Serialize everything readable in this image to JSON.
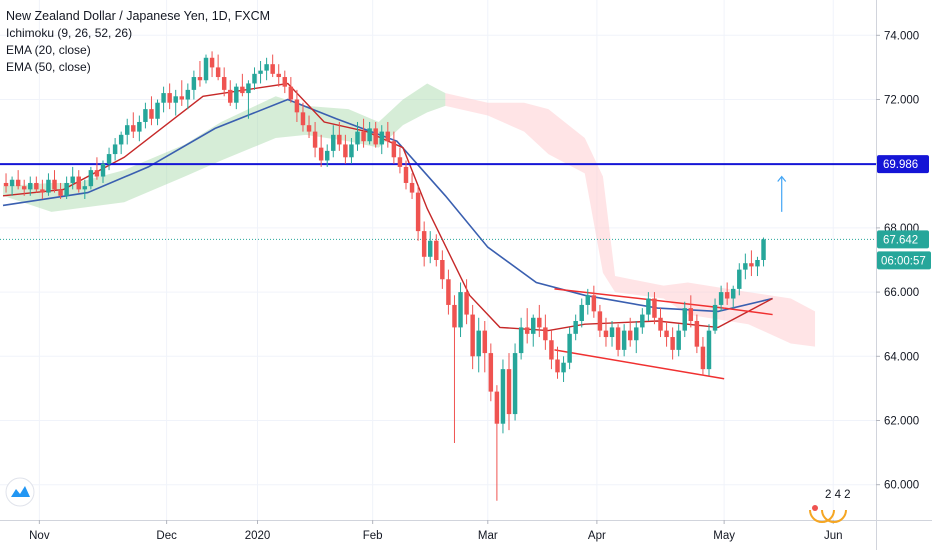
{
  "header": {
    "title": "New Zealand Dollar / Japanese Yen, 1D, FXCM",
    "indicators": [
      "Ichimoku (9, 26, 52, 26)",
      "EMA (20, close)",
      "EMA (50, close)"
    ]
  },
  "price_axis": {
    "labels": [
      "74.000",
      "72.000",
      "70.000",
      "68.000",
      "66.000",
      "64.000",
      "62.000",
      "60.000"
    ]
  },
  "time_axis": {
    "labels": [
      "Nov",
      "Dec",
      "2020",
      "Feb",
      "Mar",
      "Apr",
      "May",
      "Jun"
    ]
  },
  "badges": {
    "resistance": "69.986",
    "last_price": "67.642",
    "countdown": "06:00:57"
  },
  "watermark_text": "2 4 2",
  "colors": {
    "up": "#26a69a",
    "down": "#ef5350",
    "ema20": "#c62828",
    "ema50": "#3a5fb0",
    "resistance_line": "#1515d6",
    "channel": "#f03030",
    "cloud_bull": "#a5d6a7",
    "cloud_bear": "#ffcdd2",
    "arrow": "#42a5f5",
    "last_line": "#26a69a"
  },
  "chart_data": {
    "type": "candlestick",
    "title": "New Zealand Dollar / Japanese Yen, 1D, FXCM",
    "y_range": [
      58.9,
      75.1
    ],
    "x_labels": [
      "Nov",
      "Dec",
      "2020",
      "Feb",
      "Mar",
      "Apr",
      "May",
      "Jun"
    ],
    "resistance_level": 69.986,
    "last_price": 67.642,
    "candles": [
      [
        69.4,
        69.7,
        69.1,
        69.3
      ],
      [
        69.3,
        69.6,
        69.0,
        69.5
      ],
      [
        69.5,
        69.8,
        69.2,
        69.3
      ],
      [
        69.3,
        69.5,
        69.0,
        69.2
      ],
      [
        69.2,
        69.6,
        69.0,
        69.4
      ],
      [
        69.4,
        69.6,
        69.1,
        69.2
      ],
      [
        69.2,
        69.5,
        68.9,
        69.1
      ],
      [
        69.1,
        69.7,
        69.0,
        69.5
      ],
      [
        69.5,
        69.8,
        69.1,
        69.2
      ],
      [
        69.2,
        69.4,
        68.9,
        69.0
      ],
      [
        69.0,
        69.6,
        68.9,
        69.4
      ],
      [
        69.4,
        69.9,
        69.2,
        69.6
      ],
      [
        69.6,
        69.8,
        69.1,
        69.2
      ],
      [
        69.2,
        69.5,
        68.9,
        69.3
      ],
      [
        69.3,
        69.9,
        69.2,
        69.8
      ],
      [
        69.8,
        70.2,
        69.5,
        69.6
      ],
      [
        69.6,
        70.1,
        69.4,
        70.0
      ],
      [
        70.0,
        70.5,
        69.8,
        70.3
      ],
      [
        70.3,
        70.8,
        70.1,
        70.6
      ],
      [
        70.6,
        71.0,
        70.3,
        70.9
      ],
      [
        70.9,
        71.4,
        70.6,
        71.2
      ],
      [
        71.2,
        71.6,
        70.8,
        71.0
      ],
      [
        71.0,
        71.5,
        70.7,
        71.3
      ],
      [
        71.3,
        71.9,
        71.1,
        71.7
      ],
      [
        71.7,
        72.1,
        71.2,
        71.4
      ],
      [
        71.4,
        72.0,
        71.2,
        71.9
      ],
      [
        71.9,
        72.4,
        71.6,
        72.2
      ],
      [
        72.2,
        72.5,
        71.7,
        71.9
      ],
      [
        71.9,
        72.3,
        71.5,
        72.1
      ],
      [
        72.1,
        72.6,
        71.8,
        72.0
      ],
      [
        72.0,
        72.5,
        71.7,
        72.3
      ],
      [
        72.3,
        72.9,
        72.0,
        72.7
      ],
      [
        72.7,
        73.2,
        72.4,
        72.6
      ],
      [
        72.6,
        73.4,
        72.5,
        73.3
      ],
      [
        73.3,
        73.5,
        72.7,
        73.0
      ],
      [
        73.0,
        73.4,
        72.6,
        72.7
      ],
      [
        72.7,
        73.0,
        72.1,
        72.3
      ],
      [
        72.3,
        72.6,
        71.8,
        71.9
      ],
      [
        71.9,
        72.5,
        71.7,
        72.4
      ],
      [
        72.4,
        72.8,
        72.1,
        72.2
      ],
      [
        72.2,
        72.6,
        71.4,
        72.5
      ],
      [
        72.5,
        73.0,
        72.3,
        72.8
      ],
      [
        72.8,
        73.2,
        72.5,
        72.9
      ],
      [
        72.9,
        73.3,
        72.6,
        73.1
      ],
      [
        73.1,
        73.4,
        72.7,
        72.8
      ],
      [
        72.8,
        73.1,
        72.4,
        72.7
      ],
      [
        72.7,
        72.9,
        72.2,
        72.4
      ],
      [
        72.4,
        72.7,
        71.9,
        72.0
      ],
      [
        72.0,
        72.3,
        71.3,
        71.6
      ],
      [
        71.6,
        71.9,
        71.0,
        71.2
      ],
      [
        71.2,
        71.5,
        70.8,
        71.0
      ],
      [
        71.0,
        71.3,
        70.2,
        70.5
      ],
      [
        70.5,
        70.9,
        69.9,
        70.1
      ],
      [
        70.1,
        70.6,
        69.9,
        70.4
      ],
      [
        70.4,
        71.2,
        70.2,
        70.9
      ],
      [
        70.9,
        71.3,
        70.4,
        70.6
      ],
      [
        70.6,
        70.9,
        70.0,
        70.2
      ],
      [
        70.2,
        70.8,
        70.0,
        70.6
      ],
      [
        70.6,
        71.3,
        70.4,
        71.0
      ],
      [
        71.0,
        71.4,
        70.5,
        70.7
      ],
      [
        70.7,
        71.3,
        70.6,
        71.1
      ],
      [
        71.1,
        71.3,
        70.5,
        70.6
      ],
      [
        70.6,
        71.2,
        70.3,
        71.0
      ],
      [
        71.0,
        71.3,
        70.5,
        70.7
      ],
      [
        70.7,
        71.0,
        70.0,
        70.2
      ],
      [
        70.2,
        70.5,
        69.7,
        69.9
      ],
      [
        69.9,
        70.1,
        69.2,
        69.4
      ],
      [
        69.4,
        69.7,
        68.9,
        69.1
      ],
      [
        69.1,
        69.3,
        67.6,
        67.9
      ],
      [
        67.9,
        68.2,
        66.8,
        67.1
      ],
      [
        67.1,
        67.9,
        66.9,
        67.6
      ],
      [
        67.6,
        67.8,
        66.8,
        67.0
      ],
      [
        67.0,
        67.3,
        66.1,
        66.4
      ],
      [
        66.4,
        66.7,
        65.3,
        65.6
      ],
      [
        65.6,
        65.9,
        61.3,
        64.9
      ],
      [
        64.9,
        66.3,
        64.6,
        66.0
      ],
      [
        66.0,
        66.4,
        65.0,
        65.3
      ],
      [
        65.3,
        65.6,
        63.6,
        64.0
      ],
      [
        64.0,
        65.2,
        63.5,
        64.8
      ],
      [
        64.8,
        65.1,
        63.5,
        64.1
      ],
      [
        64.1,
        64.4,
        62.6,
        62.9
      ],
      [
        62.9,
        63.1,
        59.5,
        61.9
      ],
      [
        61.9,
        63.9,
        61.6,
        63.6
      ],
      [
        63.6,
        64.1,
        61.7,
        62.2
      ],
      [
        62.2,
        64.4,
        62.0,
        64.1
      ],
      [
        64.1,
        65.2,
        63.9,
        64.9
      ],
      [
        64.9,
        65.5,
        64.4,
        64.7
      ],
      [
        64.7,
        65.3,
        64.3,
        65.2
      ],
      [
        65.2,
        65.6,
        64.6,
        64.9
      ],
      [
        64.9,
        65.3,
        64.2,
        64.5
      ],
      [
        64.5,
        64.8,
        63.6,
        63.9
      ],
      [
        63.9,
        64.3,
        63.3,
        63.5
      ],
      [
        63.5,
        64.0,
        63.2,
        63.8
      ],
      [
        63.8,
        64.9,
        63.6,
        64.7
      ],
      [
        64.7,
        65.3,
        64.5,
        65.1
      ],
      [
        65.1,
        65.8,
        64.9,
        65.6
      ],
      [
        65.6,
        66.1,
        65.3,
        65.9
      ],
      [
        65.9,
        66.2,
        65.2,
        65.4
      ],
      [
        65.4,
        65.6,
        64.6,
        64.8
      ],
      [
        64.8,
        65.2,
        64.3,
        64.6
      ],
      [
        64.6,
        65.1,
        64.3,
        64.9
      ],
      [
        64.9,
        65.0,
        64.0,
        64.2
      ],
      [
        64.2,
        65.0,
        64.0,
        64.8
      ],
      [
        64.8,
        65.2,
        64.3,
        64.5
      ],
      [
        64.5,
        65.1,
        64.1,
        64.9
      ],
      [
        64.9,
        65.5,
        64.7,
        65.3
      ],
      [
        65.3,
        66.0,
        65.1,
        65.8
      ],
      [
        65.8,
        66.0,
        65.0,
        65.2
      ],
      [
        65.2,
        65.5,
        64.6,
        64.8
      ],
      [
        64.8,
        65.1,
        64.3,
        64.6
      ],
      [
        64.6,
        64.9,
        63.9,
        64.2
      ],
      [
        64.2,
        65.0,
        64.0,
        64.8
      ],
      [
        64.8,
        65.7,
        64.6,
        65.5
      ],
      [
        65.5,
        65.9,
        64.9,
        65.1
      ],
      [
        65.1,
        65.3,
        64.1,
        64.3
      ],
      [
        64.3,
        64.6,
        63.4,
        63.6
      ],
      [
        63.6,
        65.0,
        63.4,
        64.8
      ],
      [
        64.8,
        65.8,
        64.7,
        65.6
      ],
      [
        65.6,
        66.2,
        65.4,
        66.0
      ],
      [
        66.0,
        66.3,
        65.6,
        65.8
      ],
      [
        65.8,
        66.2,
        65.5,
        66.1
      ],
      [
        66.1,
        66.9,
        65.9,
        66.7
      ],
      [
        66.7,
        67.2,
        66.4,
        66.9
      ],
      [
        66.9,
        67.3,
        66.5,
        66.8
      ],
      [
        66.8,
        67.1,
        66.5,
        67.0
      ],
      [
        67.0,
        67.7,
        66.8,
        67.642
      ]
    ],
    "ema20": [
      [
        0,
        69.0
      ],
      [
        10,
        69.2
      ],
      [
        20,
        70.2
      ],
      [
        33,
        72.1
      ],
      [
        47,
        72.5
      ],
      [
        53,
        71.3
      ],
      [
        60,
        71.0
      ],
      [
        66,
        70.5
      ],
      [
        70,
        68.6
      ],
      [
        77,
        65.9
      ],
      [
        82,
        64.9
      ],
      [
        90,
        64.8
      ],
      [
        96,
        65.0
      ],
      [
        108,
        65.1
      ],
      [
        118,
        64.9
      ],
      [
        127,
        65.8
      ]
    ],
    "ema50": [
      [
        0,
        68.7
      ],
      [
        14,
        69.1
      ],
      [
        24,
        69.9
      ],
      [
        35,
        71.1
      ],
      [
        47,
        72.0
      ],
      [
        55,
        71.4
      ],
      [
        65,
        70.7
      ],
      [
        73,
        69.0
      ],
      [
        80,
        67.4
      ],
      [
        88,
        66.3
      ],
      [
        96,
        65.9
      ],
      [
        108,
        65.5
      ],
      [
        118,
        65.4
      ],
      [
        127,
        65.8
      ]
    ],
    "cloud_bull": [
      [
        0,
        69.3,
        69.0
      ],
      [
        8,
        69.4,
        68.5
      ],
      [
        12,
        69.4,
        68.6
      ],
      [
        20,
        69.8,
        68.8
      ],
      [
        30,
        70.6,
        69.6
      ],
      [
        36,
        71.3,
        70.1
      ],
      [
        45,
        72.1,
        70.8
      ],
      [
        50,
        71.8,
        70.9
      ],
      [
        57,
        71.7,
        70.7
      ],
      [
        62,
        71.3,
        70.5
      ],
      [
        66,
        72.0,
        71.2
      ],
      [
        70,
        72.5,
        71.6
      ],
      [
        73,
        72.2,
        71.8
      ]
    ],
    "cloud_bear": [
      [
        73,
        72.2,
        71.8
      ],
      [
        80,
        71.9,
        71.5
      ],
      [
        86,
        71.9,
        71.0
      ],
      [
        90,
        71.7,
        70.3
      ],
      [
        96,
        70.8,
        69.7
      ],
      [
        99,
        69.6,
        66.6
      ],
      [
        101,
        66.5,
        66.0
      ],
      [
        109,
        66.2,
        65.8
      ],
      [
        113,
        66.3,
        65.3
      ],
      [
        123,
        66.0,
        65.0
      ],
      [
        130,
        65.8,
        64.4
      ],
      [
        134,
        65.4,
        64.3
      ]
    ],
    "channel_upper": [
      [
        91,
        66.1
      ],
      [
        119,
        65.5
      ]
    ],
    "channel_lower": [
      [
        91,
        64.2
      ],
      [
        119,
        63.3
      ]
    ],
    "channel_upper_extension": [
      [
        119,
        65.5
      ],
      [
        127,
        65.3
      ]
    ],
    "arrow": {
      "candle_index": 128,
      "from": 68.5,
      "to": 69.6
    }
  }
}
